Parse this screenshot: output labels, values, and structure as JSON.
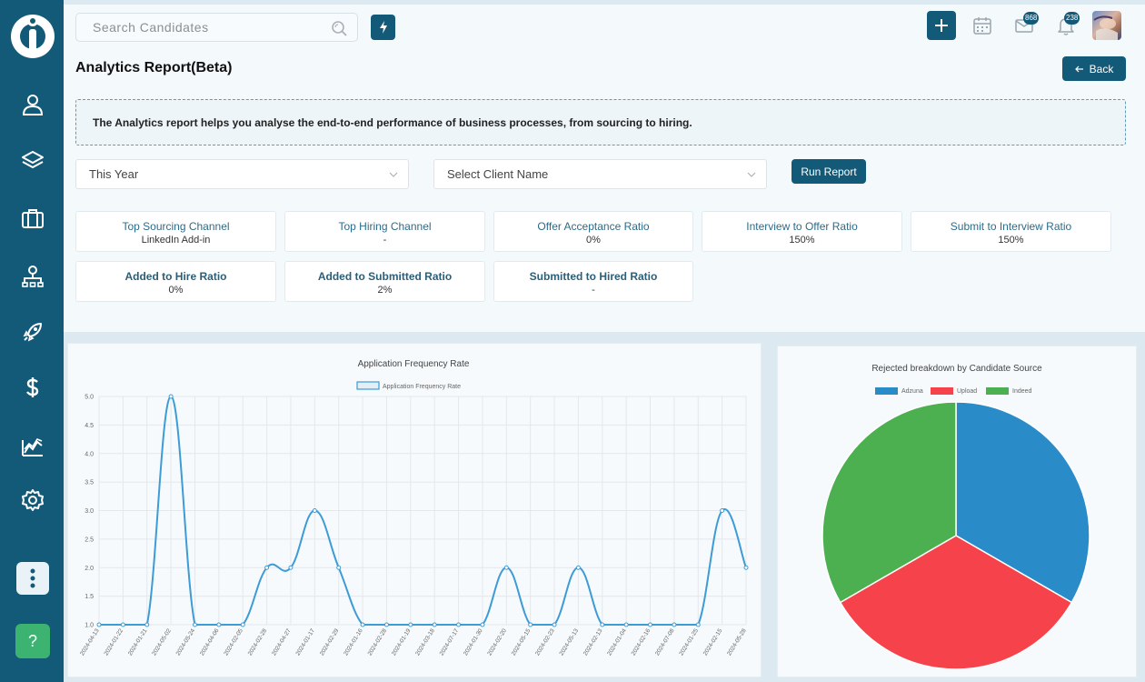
{
  "sidebar": {
    "items": [
      {
        "icon": "user-icon"
      },
      {
        "icon": "layers-icon"
      },
      {
        "icon": "briefcase-icon"
      },
      {
        "icon": "org-chart-icon"
      },
      {
        "icon": "rocket-icon"
      },
      {
        "icon": "dollar-icon"
      },
      {
        "icon": "analytics-icon"
      },
      {
        "icon": "gear-icon"
      }
    ],
    "help_label": "?"
  },
  "header": {
    "search_placeholder": "Search Candidates",
    "mail_badge": "868",
    "bell_badge": "238"
  },
  "page": {
    "title": "Analytics Report(Beta)",
    "back_label": "Back",
    "info_text": "The Analytics report helps you analyse the end-to-end performance of business processes, from sourcing to hiring."
  },
  "filters": {
    "period": "This Year",
    "client_placeholder": "Select Client Name",
    "run_label": "Run Report"
  },
  "metrics_row1": [
    {
      "label": "Top Sourcing Channel",
      "value": "LinkedIn Add-in"
    },
    {
      "label": "Top Hiring Channel",
      "value": "-"
    },
    {
      "label": "Offer Acceptance Ratio",
      "value": "0%"
    },
    {
      "label": "Interview to Offer Ratio",
      "value": "150%"
    },
    {
      "label": "Submit to Interview Ratio",
      "value": "150%"
    }
  ],
  "metrics_row2": [
    {
      "label": "Added to Hire Ratio",
      "value": "0%"
    },
    {
      "label": "Added to Submitted Ratio",
      "value": "2%"
    },
    {
      "label": "Submitted to Hired Ratio",
      "value": "-"
    }
  ],
  "colors": {
    "primary": "#135a78",
    "line": "#3d9bd6",
    "adzuna": "#2a8bc9",
    "upload": "#f5424b",
    "indeed": "#4caf50"
  },
  "chart_data": [
    {
      "type": "line",
      "title": "Application Frequency Rate",
      "legend": [
        "Application Frequency Rate"
      ],
      "x": [
        "2024-04-13",
        "2024-01-22",
        "2024-01-21",
        "2024-05-02",
        "2024-05-24",
        "2024-04-06",
        "2024-02-05",
        "2024-02-28",
        "2024-04-27",
        "2024-01-17",
        "2024-02-29",
        "2024-01-16",
        "2024-02-28",
        "2024-01-19",
        "2024-03-18",
        "2024-07-17",
        "2024-01-30",
        "2024-02-20",
        "2024-05-15",
        "2024-02-23",
        "2024-05-13",
        "2024-02-13",
        "2024-01-04",
        "2024-02-16",
        "2024-07-08",
        "2024-01-25",
        "2024-02-15",
        "2024-05-28"
      ],
      "series": [
        {
          "name": "Application Frequency Rate",
          "values": [
            1,
            1,
            1,
            5,
            1,
            1,
            1,
            2,
            2,
            3,
            2,
            1,
            1,
            1,
            1,
            1,
            1,
            2,
            1,
            1,
            2,
            1,
            1,
            1,
            1,
            1,
            3,
            2
          ]
        }
      ],
      "ylim": [
        1,
        5
      ],
      "yticks": [
        "1.0",
        "1.5",
        "2.0",
        "2.5",
        "3.0",
        "3.5",
        "4.0",
        "4.5",
        "5.0"
      ],
      "grid": true,
      "legend_position": "top"
    },
    {
      "type": "pie",
      "title": "Rejected breakdown by Candidate Source",
      "labels": [
        "Adzuna",
        "Upload",
        "Indeed"
      ],
      "values": [
        1,
        1,
        1
      ],
      "legend_position": "top"
    }
  ]
}
